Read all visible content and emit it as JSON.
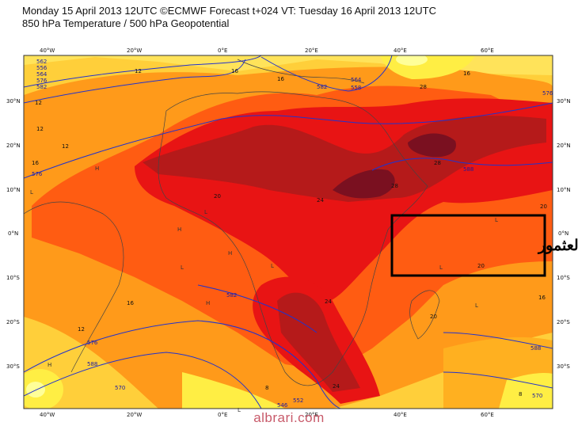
{
  "header": {
    "line1": "Monday 15 April 2013 12UTC ©ECMWF Forecast t+024 VT: Tuesday 16 April 2013 12UTC",
    "line2": "850 hPa Temperature / 500 hPa Geopotential"
  },
  "axes": {
    "lon_labels": [
      "40°W",
      "20°W",
      "0°E",
      "20°E",
      "40°E",
      "60°E"
    ],
    "lat_labels": [
      "30°N",
      "20°N",
      "10°N",
      "0°N",
      "10°S",
      "20°S",
      "30°S"
    ]
  },
  "temperature_labels": [
    "12",
    "12",
    "12",
    "12",
    "16",
    "16",
    "16",
    "16",
    "16",
    "16",
    "20",
    "20",
    "20",
    "24",
    "24",
    "24",
    "28",
    "28",
    "28",
    "20",
    "8",
    "8",
    "12"
  ],
  "geopotential_labels": [
    "562",
    "556",
    "564",
    "576",
    "582",
    "576",
    "582",
    "588",
    "576",
    "570",
    "564",
    "558",
    "552",
    "546",
    "588",
    "570",
    "588",
    "576",
    "582"
  ],
  "pressure_markers": [
    "L",
    "L",
    "L",
    "L",
    "L",
    "L",
    "H",
    "H",
    "H",
    "H",
    "H",
    "L",
    "L"
  ],
  "annotation": {
    "text": "سحاب العثمور"
  },
  "watermark": "albrari.com",
  "colors": {
    "pale_yellow": "#ffff99",
    "yellow": "#ffee44",
    "orange_light": "#ffb020",
    "orange": "#ff7a10",
    "orange_red": "#ff4010",
    "red": "#ee1010",
    "dark_red": "#b01818",
    "maroon": "#7a1020",
    "contour_blue": "#2233cc"
  }
}
